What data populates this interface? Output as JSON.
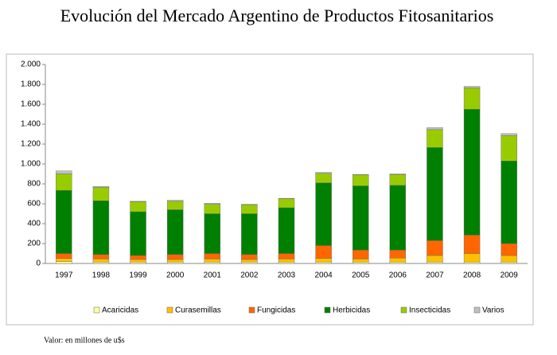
{
  "chart_data": {
    "type": "stacked_bar",
    "title": "Evolución del Mercado Argentino de Productos Fitosanitarios",
    "note": "Valor: en millones de u$s",
    "categories": [
      "1997",
      "1998",
      "1999",
      "2000",
      "2001",
      "2002",
      "2003",
      "2004",
      "2005",
      "2006",
      "2007",
      "2008",
      "2009"
    ],
    "series": [
      {
        "name": "Acaricidas",
        "color": "#ffff99",
        "values": [
          20,
          15,
          15,
          15,
          15,
          15,
          15,
          15,
          15,
          15,
          15,
          15,
          15
        ]
      },
      {
        "name": "Curasemillas",
        "color": "#ffc000",
        "values": [
          30,
          30,
          25,
          25,
          30,
          25,
          30,
          35,
          30,
          40,
          65,
          85,
          65
        ]
      },
      {
        "name": "Fungicidas",
        "color": "#ff6600",
        "values": [
          50,
          45,
          40,
          50,
          55,
          50,
          55,
          130,
          90,
          80,
          150,
          185,
          120
        ]
      },
      {
        "name": "Herbicidas",
        "color": "#008000",
        "values": [
          635,
          540,
          440,
          450,
          400,
          410,
          460,
          630,
          645,
          650,
          935,
          1265,
          830
        ]
      },
      {
        "name": "Insecticidas",
        "color": "#99cc00",
        "values": [
          165,
          135,
          100,
          85,
          95,
          90,
          90,
          95,
          110,
          110,
          180,
          215,
          255
        ]
      },
      {
        "name": "Varios",
        "color": "#c0c0c0",
        "values": [
          30,
          10,
          5,
          10,
          10,
          5,
          5,
          10,
          5,
          5,
          20,
          15,
          20
        ]
      }
    ],
    "ylim": [
      0,
      2000
    ],
    "yticks": [
      0,
      200,
      400,
      600,
      800,
      {
        "value": 1000,
        "label": "1.000"
      },
      {
        "value": 1200,
        "label": "1.200"
      },
      {
        "value": 1400,
        "label": "1.400"
      },
      {
        "value": 1600,
        "label": "1.600"
      },
      {
        "value": 1800,
        "label": "1.800"
      },
      {
        "value": 2000,
        "label": "2.000"
      }
    ],
    "grid": false,
    "legend": "bottom"
  }
}
